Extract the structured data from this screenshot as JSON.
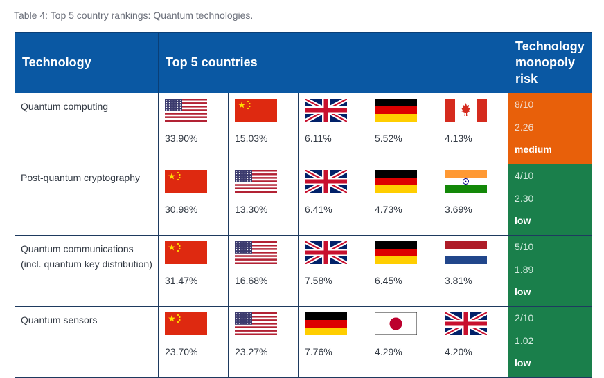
{
  "caption": "Table 4: Top 5 country rankings: Quantum technologies.",
  "headers": {
    "technology": "Technology",
    "countries": "Top 5 countries",
    "risk": "Technology monopoly risk"
  },
  "colors": {
    "header_bg": "#0a58a3",
    "risk_medium": "#e8600a",
    "risk_low": "#1a7f4b"
  },
  "rows": [
    {
      "technology": "Quantum computing",
      "countries": [
        {
          "flag": "us-flag",
          "share": "33.90%"
        },
        {
          "flag": "cn-flag",
          "share": "15.03%"
        },
        {
          "flag": "gb-flag",
          "share": "6.11%"
        },
        {
          "flag": "de-flag",
          "share": "5.52%"
        },
        {
          "flag": "ca-flag",
          "share": "4.13%"
        }
      ],
      "risk": {
        "score": "8/10",
        "index": "2.26",
        "level": "medium"
      }
    },
    {
      "technology": "Post-quantum cryptography",
      "countries": [
        {
          "flag": "cn-flag",
          "share": "30.98%"
        },
        {
          "flag": "us-flag",
          "share": "13.30%"
        },
        {
          "flag": "gb-flag",
          "share": "6.41%"
        },
        {
          "flag": "de-flag",
          "share": "4.73%"
        },
        {
          "flag": "in-flag",
          "share": "3.69%"
        }
      ],
      "risk": {
        "score": "4/10",
        "index": "2.30",
        "level": "low"
      }
    },
    {
      "technology": "Quantum communications (incl. quantum key distribution)",
      "countries": [
        {
          "flag": "cn-flag",
          "share": "31.47%"
        },
        {
          "flag": "us-flag",
          "share": "16.68%"
        },
        {
          "flag": "gb-flag",
          "share": "7.58%"
        },
        {
          "flag": "de-flag",
          "share": "6.45%"
        },
        {
          "flag": "nl-flag",
          "share": "3.81%"
        }
      ],
      "risk": {
        "score": "5/10",
        "index": "1.89",
        "level": "low"
      }
    },
    {
      "technology": "Quantum sensors",
      "countries": [
        {
          "flag": "cn-flag",
          "share": "23.70%"
        },
        {
          "flag": "us-flag",
          "share": "23.27%"
        },
        {
          "flag": "de-flag",
          "share": "7.76%"
        },
        {
          "flag": "jp-flag",
          "share": "4.29%"
        },
        {
          "flag": "gb-flag",
          "share": "4.20%"
        }
      ],
      "risk": {
        "score": "2/10",
        "index": "1.02",
        "level": "low"
      }
    }
  ]
}
